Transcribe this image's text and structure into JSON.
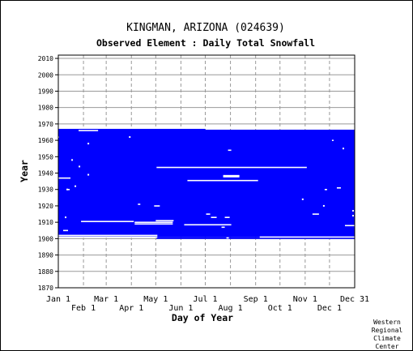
{
  "chart_data": {
    "type": "heatmap",
    "title": "KINGMAN, ARIZONA   (024639)",
    "subtitle": "Observed Element : Daily Total Snowfall",
    "xlabel": "Day of Year",
    "ylabel": "Year",
    "xlim": [
      1,
      366
    ],
    "ylim": [
      1870,
      2012
    ],
    "grid": true,
    "y_ticks": [
      1870,
      1880,
      1890,
      1900,
      1910,
      1920,
      1930,
      1940,
      1950,
      1960,
      1970,
      1980,
      1990,
      2000,
      2010
    ],
    "x_ticks_upper": [
      {
        "label": "Jan 1",
        "day": 1
      },
      {
        "label": "Mar 1",
        "day": 60
      },
      {
        "label": "May 1",
        "day": 121
      },
      {
        "label": "Jul 1",
        "day": 182
      },
      {
        "label": "Sep 1",
        "day": 244
      },
      {
        "label": "Nov 1",
        "day": 305
      },
      {
        "label": "Dec 31",
        "day": 366
      }
    ],
    "x_ticks_lower": [
      {
        "label": "Feb 1",
        "day": 32
      },
      {
        "label": "Apr 1",
        "day": 91
      },
      {
        "label": "Jun 1",
        "day": 152
      },
      {
        "label": "Aug 1",
        "day": 213
      },
      {
        "label": "Oct 1",
        "day": 274
      },
      {
        "label": "Dec 1",
        "day": 335
      }
    ],
    "data_color": "#0000ff",
    "missing_color": "#ffffff",
    "coverage": {
      "start": {
        "year": 1899.8,
        "day": 122
      },
      "end": {
        "year": 1966.5,
        "day": 366
      },
      "early_partial_year": {
        "year": 1967,
        "start_day": 1,
        "end_day": 182
      }
    },
    "missing_segments": [
      {
        "year": 1966,
        "start_day": 26,
        "end_day": 50
      },
      {
        "year": 1962,
        "start_day": 1,
        "end_day": 2
      },
      {
        "year": 1960,
        "start_day": 338,
        "end_day": 340
      },
      {
        "year": 1954,
        "start_day": 210,
        "end_day": 214
      },
      {
        "year": 1943.5,
        "start_day": 122,
        "end_day": 307
      },
      {
        "year": 1938.5,
        "start_day": 204,
        "end_day": 224
      },
      {
        "year": 1937.8,
        "start_day": 204,
        "end_day": 224
      },
      {
        "year": 1935.5,
        "start_day": 160,
        "end_day": 247
      },
      {
        "year": 1937,
        "start_day": 1,
        "end_day": 16
      },
      {
        "year": 1931,
        "start_day": 344,
        "end_day": 349
      },
      {
        "year": 1930,
        "start_day": 329,
        "end_day": 332
      },
      {
        "year": 1930,
        "start_day": 12,
        "end_day": 15
      },
      {
        "year": 1921,
        "start_day": 99,
        "end_day": 102
      },
      {
        "year": 1920,
        "start_day": 119,
        "end_day": 126
      },
      {
        "year": 1915,
        "start_day": 183,
        "end_day": 188
      },
      {
        "year": 1915,
        "start_day": 314,
        "end_day": 322
      },
      {
        "year": 1913,
        "start_day": 189,
        "end_day": 196
      },
      {
        "year": 1913,
        "start_day": 206,
        "end_day": 212
      },
      {
        "year": 1911,
        "start_day": 121,
        "end_day": 143
      },
      {
        "year": 1910.5,
        "start_day": 29,
        "end_day": 94
      },
      {
        "year": 1910,
        "start_day": 95,
        "end_day": 142
      },
      {
        "year": 1909,
        "start_day": 95,
        "end_day": 142
      },
      {
        "year": 1908.5,
        "start_day": 156,
        "end_day": 214
      },
      {
        "year": 1908,
        "start_day": 354,
        "end_day": 366
      },
      {
        "year": 1907,
        "start_day": 202,
        "end_day": 206
      },
      {
        "year": 1905,
        "start_day": 7,
        "end_day": 13
      },
      {
        "year": 1902,
        "start_day": 1,
        "end_day": 123
      },
      {
        "year": 1901,
        "start_day": 1,
        "end_day": 123
      },
      {
        "year": 1901,
        "start_day": 249,
        "end_day": 366
      },
      {
        "year": 1900.5,
        "start_day": 208,
        "end_day": 211
      }
    ],
    "isolated_points": [
      {
        "year": 1962,
        "day": 89
      },
      {
        "year": 1958,
        "day": 38
      },
      {
        "year": 1955,
        "day": 352
      },
      {
        "year": 1948,
        "day": 18
      },
      {
        "year": 1944,
        "day": 27
      },
      {
        "year": 1939,
        "day": 38
      },
      {
        "year": 1932,
        "day": 22
      },
      {
        "year": 1930,
        "day": 12
      },
      {
        "year": 1924,
        "day": 302
      },
      {
        "year": 1920,
        "day": 328
      },
      {
        "year": 1917,
        "day": 364
      },
      {
        "year": 1914,
        "day": 364
      },
      {
        "year": 1913,
        "day": 10
      }
    ]
  },
  "credit": {
    "line1": "Western",
    "line2": "Regional",
    "line3": "Climate",
    "line4": "Center"
  }
}
